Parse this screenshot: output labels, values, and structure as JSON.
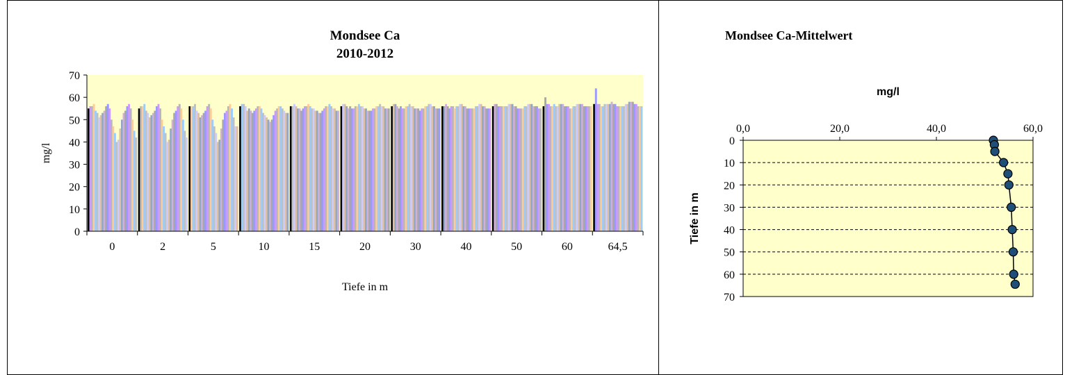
{
  "chart_data": [
    {
      "type": "bar",
      "title": "Mondsee  Ca",
      "subtitle": "2010-2012",
      "xlabel": "Tiefe in m",
      "ylabel": "mg/l",
      "ylim": [
        0,
        70
      ],
      "yticks": [
        "0",
        "10",
        "20",
        "30",
        "40",
        "50",
        "60",
        "70"
      ],
      "categories": [
        "0",
        "2",
        "5",
        "10",
        "15",
        "20",
        "30",
        "40",
        "50",
        "60",
        "64,5"
      ],
      "grouped_values": [
        [
          55,
          56,
          56,
          57,
          54,
          53,
          51,
          52,
          53,
          54,
          56,
          57,
          55,
          50,
          47,
          44,
          40,
          41,
          46,
          50,
          53,
          54,
          56,
          57,
          55,
          50,
          45,
          42
        ],
        [
          55,
          56,
          56,
          57,
          54,
          53,
          51,
          52,
          53,
          54,
          56,
          57,
          55,
          50,
          47,
          44,
          40,
          41,
          46,
          50,
          53,
          54,
          56,
          57,
          55,
          50,
          45,
          42
        ],
        [
          56,
          56,
          56,
          57,
          54,
          53,
          51,
          52,
          53,
          54,
          56,
          57,
          55,
          50,
          47,
          44,
          40,
          41,
          46,
          50,
          53,
          54,
          56,
          57,
          55,
          51,
          47,
          47
        ],
        [
          56,
          57,
          57,
          56,
          54,
          55,
          54,
          53,
          54,
          55,
          56,
          56,
          55,
          53,
          52,
          51,
          50,
          49,
          50,
          52,
          54,
          55,
          56,
          56,
          55,
          54,
          53,
          53
        ],
        [
          56,
          56,
          57,
          56,
          55,
          55,
          54,
          55,
          56,
          56,
          57,
          56,
          55,
          55,
          54,
          54,
          53,
          53,
          54,
          55,
          56,
          56,
          57,
          56,
          55,
          55,
          54,
          54
        ],
        [
          56,
          57,
          57,
          56,
          55,
          56,
          55,
          55,
          56,
          56,
          57,
          56,
          56,
          55,
          55,
          54,
          54,
          54,
          55,
          55,
          56,
          56,
          57,
          56,
          56,
          55,
          55,
          55
        ],
        [
          56,
          57,
          57,
          56,
          55,
          56,
          55,
          55,
          56,
          56,
          57,
          56,
          56,
          55,
          55,
          55,
          54,
          55,
          55,
          56,
          56,
          57,
          57,
          56,
          56,
          55,
          55,
          55
        ],
        [
          56,
          56,
          57,
          56,
          55,
          56,
          56,
          55,
          56,
          56,
          57,
          57,
          56,
          56,
          55,
          55,
          55,
          55,
          55,
          56,
          56,
          57,
          57,
          56,
          56,
          55,
          55,
          55
        ],
        [
          56,
          57,
          57,
          56,
          56,
          56,
          56,
          56,
          56,
          57,
          57,
          57,
          56,
          56,
          55,
          55,
          55,
          55,
          56,
          56,
          57,
          57,
          57,
          56,
          56,
          56,
          55,
          55
        ],
        [
          56,
          60,
          57,
          57,
          56,
          56,
          57,
          56,
          56,
          57,
          57,
          57,
          56,
          56,
          56,
          55,
          55,
          56,
          56,
          57,
          57,
          57,
          57,
          56,
          56,
          56,
          56,
          56
        ],
        [
          57,
          64,
          57,
          57,
          56,
          56,
          57,
          57,
          57,
          57,
          58,
          57,
          57,
          56,
          56,
          56,
          56,
          56,
          57,
          57,
          58,
          58,
          58,
          57,
          57,
          56,
          56,
          56
        ]
      ]
    },
    {
      "type": "scatter",
      "title": "Mondsee  Ca-Mittelwert",
      "xlabel": "mg/l",
      "ylabel": "Tiefe in m",
      "xlim": [
        0,
        60
      ],
      "ylim": [
        0,
        70
      ],
      "xticks": [
        "0,0",
        "20,0",
        "40,0",
        "60,0"
      ],
      "yticks": [
        "0",
        "10",
        "20",
        "30",
        "40",
        "50",
        "60",
        "70"
      ],
      "x": [
        51.8,
        52.0,
        52.1,
        53.9,
        54.8,
        55.0,
        55.5,
        55.7,
        55.9,
        56.0,
        56.3
      ],
      "y": [
        0,
        2,
        5,
        10,
        15,
        20,
        30,
        40,
        50,
        60,
        64.5
      ]
    }
  ],
  "colors": {
    "plot_background": "#ffffcc",
    "first_bar": "#000000",
    "bar_palette": [
      "#9999ff",
      "#cc99ff",
      "#b7b7b7",
      "#ffcc99",
      "#99ccff",
      "#c0c0c0",
      "#ccccff",
      "#e0c0a0",
      "#8fa8c8",
      "#d0b0d8",
      "#a8a8a8"
    ],
    "marker_fill": "#1f4e79",
    "marker_stroke": "#000000",
    "grid": "#000000"
  }
}
